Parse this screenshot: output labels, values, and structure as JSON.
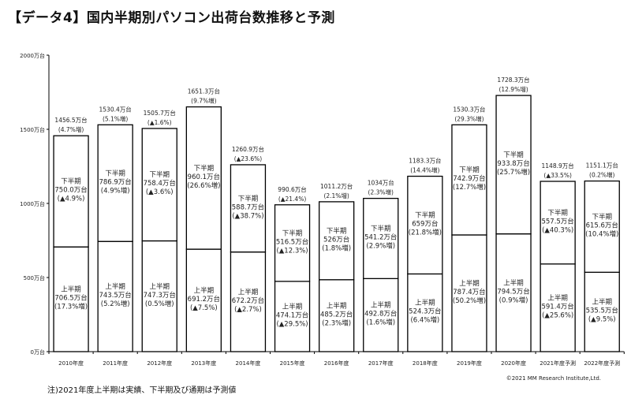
{
  "title": "【データ4】国内半期別パソコン出荷台数推移と予測",
  "note": "注)2021年度上半期は実績、下半期及び通期は予測値",
  "copyright": "©2021 MM Research Institute,Ltd.",
  "chart_data": {
    "type": "bar",
    "stacked": true,
    "title": "【データ4】国内半期別パソコン出荷台数推移と予測",
    "ylim": [
      0,
      2000
    ],
    "yticks": [
      "0万台",
      "500万台",
      "1000万台",
      "1500万台",
      "2000万台"
    ],
    "ytick_values": [
      0,
      500,
      1000,
      1500,
      2000
    ],
    "grid": false,
    "categories": [
      "2010年度",
      "2011年度",
      "2012年度",
      "2013年度",
      "2014年度",
      "2015年度",
      "2016年度",
      "2017年度",
      "2018年度",
      "2019年度",
      "2020年度",
      "2021年度予測",
      "2022年度予測"
    ],
    "series": [
      {
        "name": "上半期",
        "values": [
          706.5,
          743.5,
          747.3,
          691.2,
          672.2,
          474.1,
          485.2,
          492.8,
          524.3,
          787.4,
          794.5,
          591.4,
          535.5
        ],
        "value_labels": [
          "706.5万台",
          "743.5万台",
          "747.3万台",
          "691.2万台",
          "672.2万台",
          "474.1万台",
          "485.2万台",
          "492.8万台",
          "524.3万台",
          "787.4万台",
          "794.5万台",
          "591.4万台",
          "535.5万台"
        ],
        "change_labels": [
          "(17.3%増)",
          "(5.2%増)",
          "(0.5%増)",
          "(▲7.5%)",
          "(▲2.7%)",
          "(▲29.5%)",
          "(2.3%増)",
          "(1.6%増)",
          "(6.4%増)",
          "(50.2%増)",
          "(0.9%増)",
          "(▲25.6%)",
          "(▲9.5%)"
        ]
      },
      {
        "name": "下半期",
        "values": [
          750.0,
          786.9,
          758.4,
          960.1,
          588.7,
          516.5,
          526,
          541.2,
          659,
          742.9,
          933.8,
          557.5,
          615.6
        ],
        "value_labels": [
          "750.0万台",
          "786.9万台",
          "758.4万台",
          "960.1万台",
          "588.7万台",
          "516.5万台",
          "526万台",
          "541.2万台",
          "659万台",
          "742.9万台",
          "933.8万台",
          "557.5万台",
          "615.6万台"
        ],
        "change_labels": [
          "(▲4.9%)",
          "(4.9%増)",
          "(▲3.6%)",
          "(26.6%増)",
          "(▲38.7%)",
          "(▲12.3%)",
          "(1.8%増)",
          "(2.9%増)",
          "(21.8%増)",
          "(12.7%増)",
          "(25.7%増)",
          "(▲40.3%)",
          "(10.4%増)"
        ]
      }
    ],
    "totals": {
      "values": [
        1456.5,
        1530.4,
        1505.7,
        1651.3,
        1260.9,
        990.6,
        1011.2,
        1034,
        1183.3,
        1530.3,
        1728.3,
        1148.9,
        1151.1
      ],
      "value_labels": [
        "1456.5万台",
        "1530.4万台",
        "1505.7万台",
        "1651.3万台",
        "1260.9万台",
        "990.6万台",
        "1011.2万台",
        "1034万台",
        "1183.3万台",
        "1530.3万台",
        "1728.3万台",
        "1148.9万台",
        "1151.1万台"
      ],
      "change_labels": [
        "(4.7%増)",
        "(5.1%増)",
        "(▲1.6%)",
        "(9.7%増)",
        "(▲23.6%)",
        "(▲21.4%)",
        "(2.1%増)",
        "(2.3%増)",
        "(14.4%増)",
        "(29.3%増)",
        "(12.9%増)",
        "(▲33.5%)",
        "(0.2%増)"
      ]
    },
    "colors": {
      "bar_fill": "#ffffff",
      "bar_stroke": "#000000"
    }
  }
}
